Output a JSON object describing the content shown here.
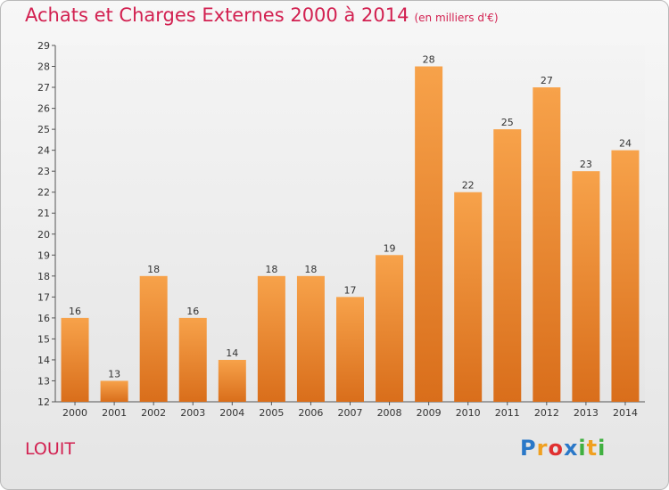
{
  "chart_data": {
    "type": "bar",
    "title": "Achats et Charges Externes 2000 à 2014",
    "unit": "(en milliers d'€)",
    "categories": [
      "2000",
      "2001",
      "2002",
      "2003",
      "2004",
      "2005",
      "2006",
      "2007",
      "2008",
      "2009",
      "2010",
      "2011",
      "2012",
      "2013",
      "2014"
    ],
    "values": [
      16,
      13,
      18,
      16,
      14,
      18,
      18,
      17,
      19,
      28,
      22,
      25,
      27,
      23,
      24
    ],
    "ylim": [
      12,
      29
    ],
    "yticks": [
      12,
      13,
      14,
      15,
      16,
      17,
      18,
      19,
      20,
      21,
      22,
      23,
      24,
      25,
      26,
      27,
      28,
      29
    ],
    "grid": false,
    "bar_color": "#f0953f"
  },
  "footer": {
    "place": "LOUIT"
  },
  "brand": {
    "letters": [
      "P",
      "r",
      "o",
      "x",
      "i",
      "t",
      "i"
    ],
    "colors": [
      "#2a78c8",
      "#f0a020",
      "#e03030",
      "#2a78c8",
      "#40b040",
      "#f0a020",
      "#40b040"
    ]
  }
}
